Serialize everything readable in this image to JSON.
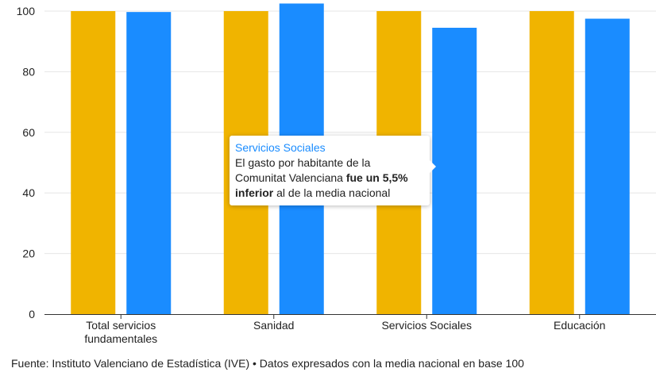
{
  "chart_data": {
    "type": "bar",
    "categories": [
      [
        "Total servicios",
        "fundamentales"
      ],
      [
        "Sanidad"
      ],
      [
        "Servicios Sociales"
      ],
      [
        "Educación"
      ]
    ],
    "series": [
      {
        "values": [
          100,
          100,
          100,
          100
        ],
        "color": "#f0b400"
      },
      {
        "values": [
          99.7,
          102.5,
          94.5,
          97.5
        ],
        "color": "#1a8cff"
      }
    ],
    "ylim": [
      0,
      100
    ],
    "yticks": [
      0,
      20,
      40,
      60,
      80,
      100
    ],
    "grid": true,
    "legend": "none"
  },
  "tooltip": {
    "title": "Servicios Sociales",
    "line1": "El gasto por habitante de la",
    "line2_plain": "Comunitat Valenciana ",
    "line2_bold": "fue un 5,5%",
    "line3_bold": "inferior",
    "line3_plain": " al de la media nacional"
  },
  "source": "Fuente: Instituto Valenciano de Estadística (IVE) • Datos expresados con la media nacional en base 100"
}
